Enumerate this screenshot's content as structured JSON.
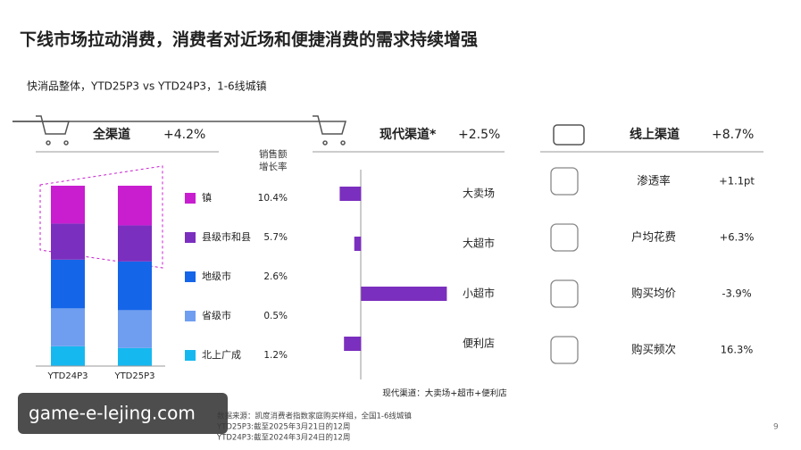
{
  "title": "下线市场拉动消费，消费者对近场和便捷消费的需求持续增强",
  "subtitle": "快消品整体，YTD25P3 vs YTD24P3，1-6线城镇",
  "chart_data": [
    {
      "type": "stacked-bar",
      "channel": "全渠道",
      "growth": "+4.2%",
      "categories": [
        "YTD24P3",
        "YTD25P3"
      ],
      "ylim": [
        0,
        100
      ],
      "growth_header": "销售额增长率",
      "series": [
        {
          "name": "镇",
          "color": "#c81ed0",
          "values": [
            21,
            22
          ],
          "growth": "10.4%"
        },
        {
          "name": "县级市和县",
          "color": "#7b2fbe",
          "values": [
            20,
            20
          ],
          "growth": "5.7%"
        },
        {
          "name": "地级市",
          "color": "#1565e8",
          "values": [
            27,
            27
          ],
          "growth": "2.6%"
        },
        {
          "name": "省级市",
          "color": "#6f9ef0",
          "values": [
            21,
            21
          ],
          "growth": "0.5%"
        },
        {
          "name": "北上广成",
          "color": "#16b8f0",
          "values": [
            11,
            10
          ],
          "growth": "1.2%"
        }
      ]
    },
    {
      "type": "diverging-bar",
      "channel": "现代渠道*",
      "growth": "+2.5%",
      "categories": [
        "大卖场",
        "大超市",
        "小超市",
        "便利店"
      ],
      "values": [
        -2.5,
        -0.8,
        10,
        -2
      ],
      "color": "#7b2fbe",
      "xlim": [
        -4,
        11
      ],
      "note": "现代渠道：大卖场+超市+便利店"
    }
  ],
  "online": {
    "channel": "线上渠道",
    "growth": "+8.7%",
    "rows": [
      {
        "label": "渗透率",
        "value": "+1.1pt"
      },
      {
        "label": "户均花费",
        "value": "+6.3%"
      },
      {
        "label": "购买均价",
        "value": "-3.9%"
      },
      {
        "label": "购买频次",
        "value": "16.3%"
      }
    ]
  },
  "source": [
    "数据来源：凯度消费者指数家庭购买样组，全国1-6线城镇",
    "YTD25P3:截至2025年3月21日的12周",
    "YTD24P3:截至2024年3月24日的12周"
  ],
  "overlay": "game-e-lejing.com",
  "page_number": "9"
}
